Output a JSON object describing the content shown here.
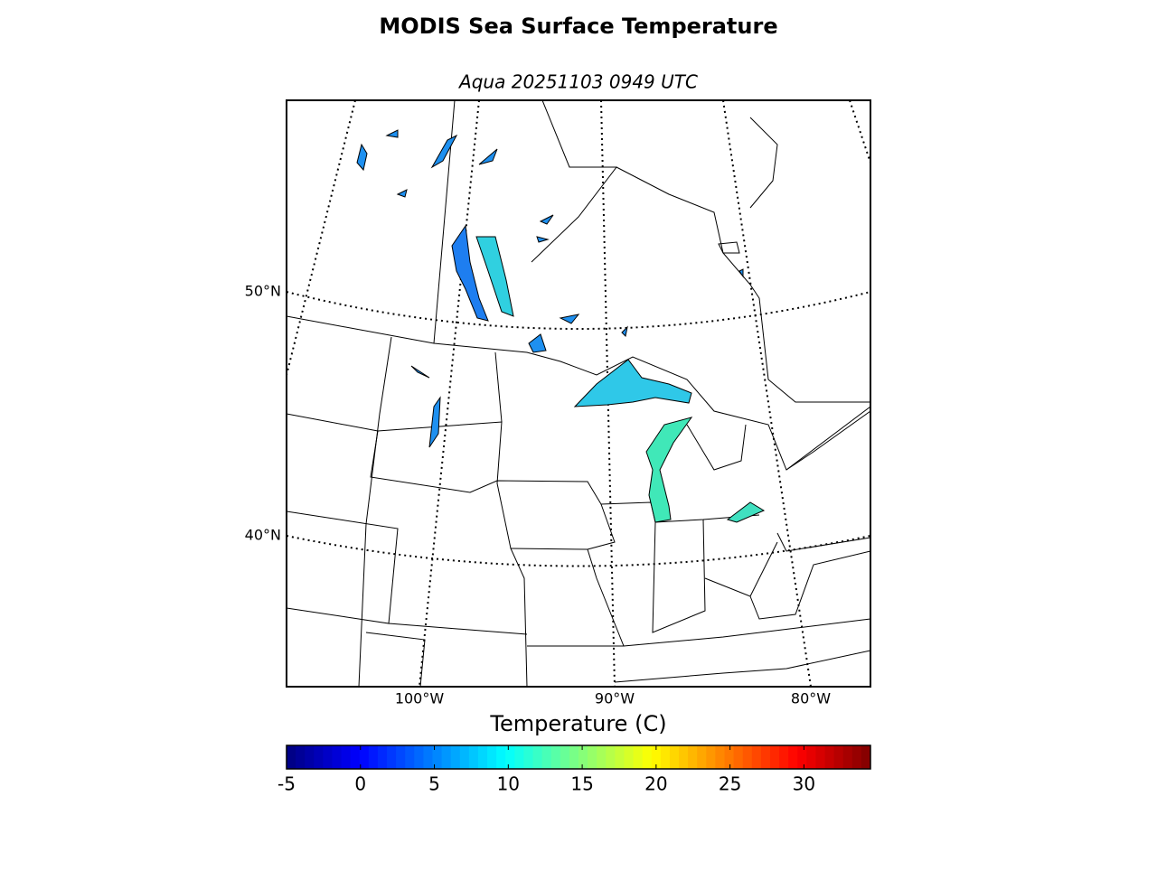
{
  "header": {
    "title": "MODIS Sea Surface Temperature",
    "subtitle": "Aqua 20251103 0949 UTC"
  },
  "map": {
    "lat_labels": [
      "50°N",
      "40°N"
    ],
    "lon_labels": [
      "100°W",
      "90°W",
      "80°W"
    ]
  },
  "colorbar": {
    "label": "Temperature (C)",
    "range": [
      -5,
      34.5
    ],
    "ticks": [
      -5,
      0,
      5,
      10,
      15,
      20,
      25,
      30
    ]
  }
}
